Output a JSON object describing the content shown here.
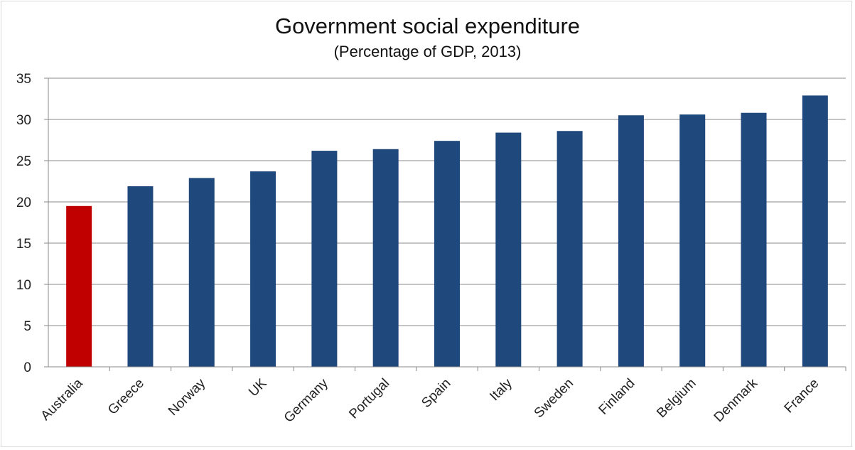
{
  "chart_data": {
    "type": "bar",
    "title": "Government social expenditure",
    "subtitle": "(Percentage of GDP, 2013)",
    "xlabel": "",
    "ylabel": "",
    "categories": [
      "Australia",
      "Greece",
      "Norway",
      "UK",
      "Germany",
      "Portugal",
      "Spain",
      "Italy",
      "Sweden",
      "Finland",
      "Belgium",
      "Denmark",
      "France"
    ],
    "values": [
      19.5,
      21.9,
      22.9,
      23.7,
      26.2,
      26.4,
      27.4,
      28.4,
      28.6,
      30.5,
      30.6,
      30.8,
      32.9
    ],
    "ylim": [
      0,
      35
    ],
    "yticks": [
      0,
      5,
      10,
      15,
      20,
      25,
      30,
      35
    ],
    "grid": true,
    "legend": "none",
    "colors": {
      "highlight": "#c00000",
      "default": "#1f497d",
      "grid": "#888888"
    },
    "highlight_category": "Australia"
  }
}
